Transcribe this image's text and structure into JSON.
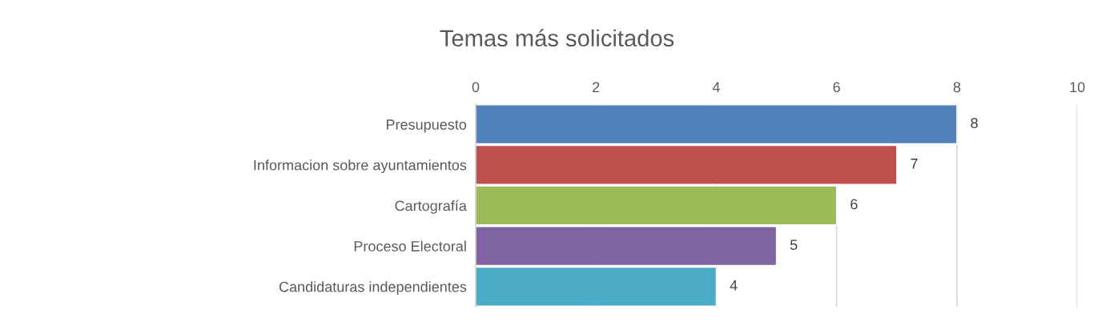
{
  "chart_data": {
    "type": "bar",
    "title": "Temas más solicitados",
    "orientation": "horizontal",
    "categories": [
      "Presupuesto",
      "Informacion sobre ayuntamientos",
      "Cartografía",
      "Proceso Electoral",
      "Candidaturas independientes"
    ],
    "values": [
      8,
      7,
      6,
      5,
      4
    ],
    "colors": [
      "#4f81bd",
      "#c0504d",
      "#9bbb59",
      "#8064a2",
      "#4bacc6"
    ],
    "xlim": [
      0,
      10
    ],
    "xticks": [
      0,
      2,
      4,
      6,
      8,
      10
    ],
    "grid": "x",
    "data_labels": true,
    "legend": false
  }
}
